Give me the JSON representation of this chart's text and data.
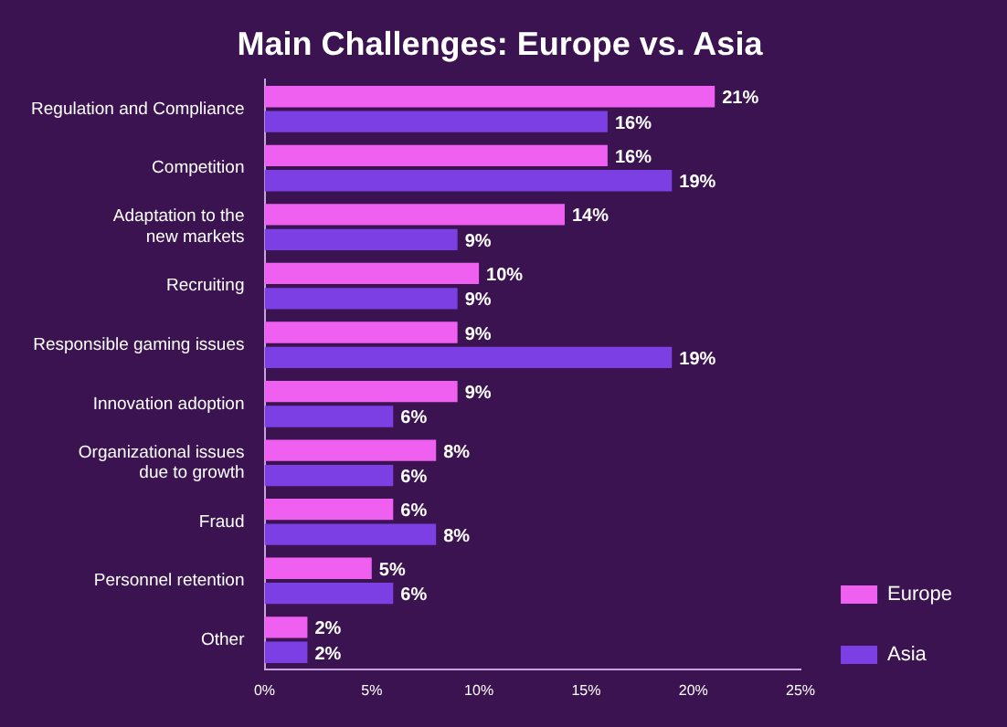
{
  "chart_data": {
    "type": "bar",
    "orientation": "horizontal",
    "title": "Main Challenges: Europe vs. Asia",
    "categories": [
      "Regulation and Compliance",
      "Competition",
      "Adaptation to the\nnew markets",
      "Recruiting",
      "Responsible gaming issues",
      "Innovation adoption",
      "Organizational issues\ndue to growth",
      "Fraud",
      "Personnel retention",
      "Other"
    ],
    "series": [
      {
        "name": "Europe",
        "color": "#f060f0",
        "values": [
          21,
          16,
          14,
          10,
          9,
          9,
          8,
          6,
          5,
          2
        ],
        "value_labels": [
          "21%",
          "16%",
          "14%",
          "10%",
          "9%",
          "9%",
          "8%",
          "6%",
          "5%",
          "2%"
        ]
      },
      {
        "name": "Asia",
        "color": "#7c3fe4",
        "values": [
          16,
          19,
          9,
          9,
          19,
          6,
          6,
          8,
          6,
          2
        ],
        "value_labels": [
          "16%",
          "19%",
          "9%",
          "9%",
          "19%",
          "6%",
          "6%",
          "8%",
          "6%",
          "2%"
        ]
      }
    ],
    "xlim": [
      0,
      25
    ],
    "xticks": [
      {
        "value": 0,
        "label": "0%"
      },
      {
        "value": 5,
        "label": "5%"
      },
      {
        "value": 10,
        "label": "10%"
      },
      {
        "value": 15,
        "label": "15%"
      },
      {
        "value": 20,
        "label": "20%"
      },
      {
        "value": 25,
        "label": "25%"
      }
    ],
    "grid": false,
    "legend": "bottom right"
  }
}
